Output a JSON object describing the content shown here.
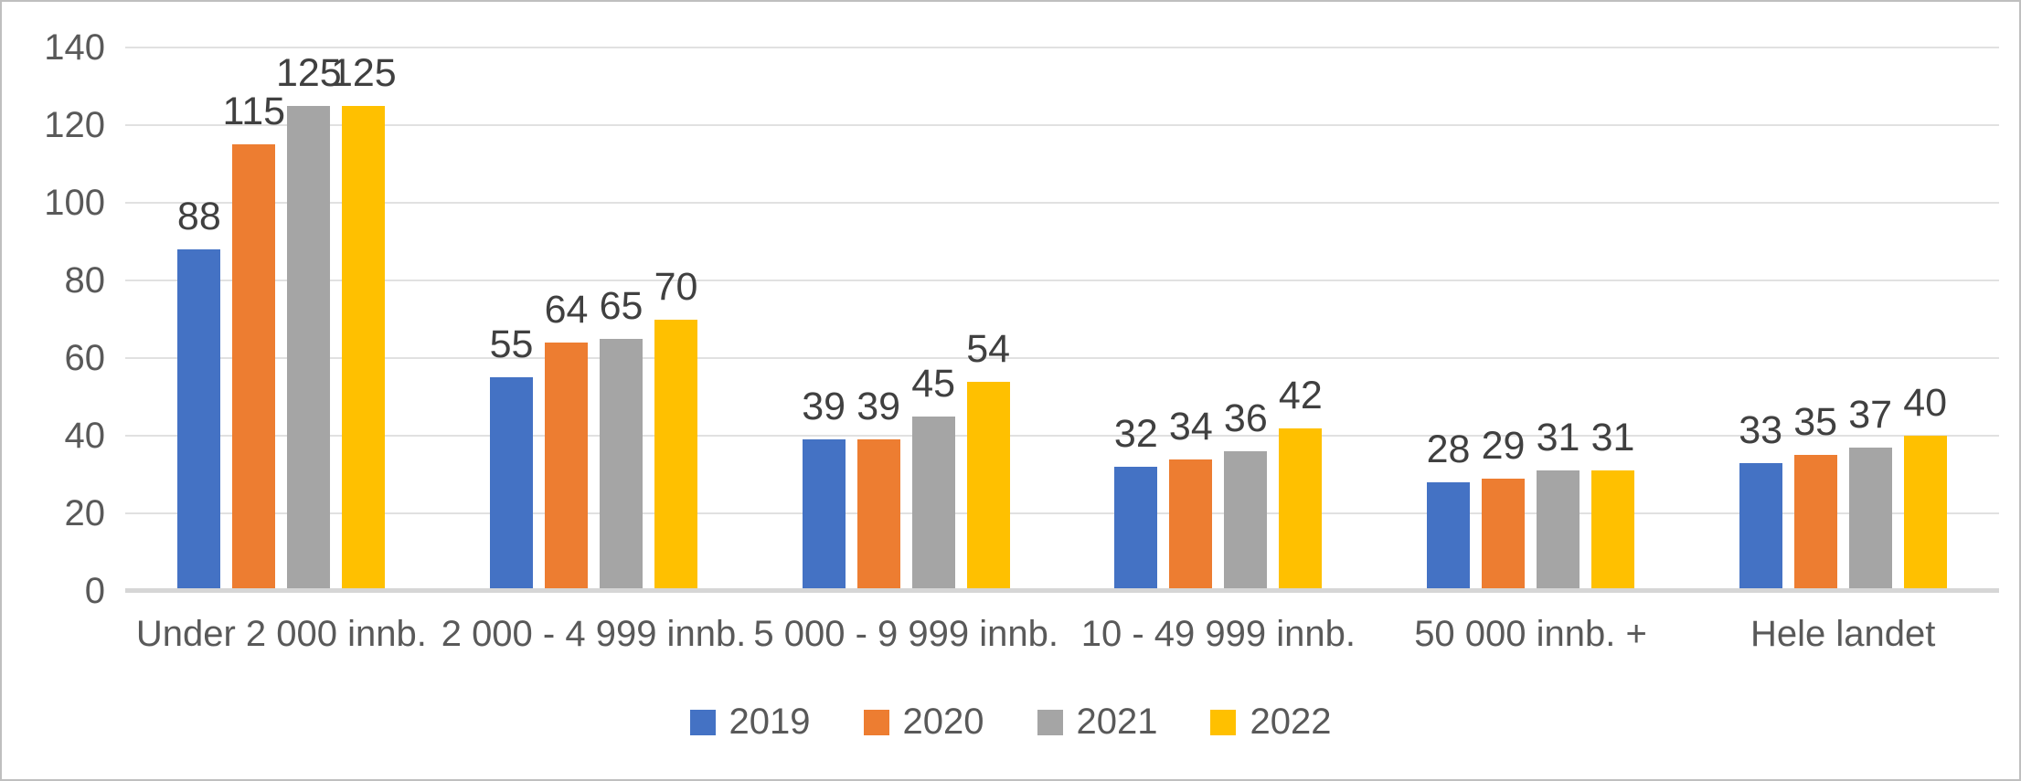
{
  "chart_data": {
    "type": "bar",
    "categories": [
      "Under 2 000 innb.",
      "2 000 - 4 999 innb.",
      "5 000 - 9 999 innb.",
      "10 - 49 999 innb.",
      "50 000 innb. +",
      "Hele landet"
    ],
    "series": [
      {
        "name": "2019",
        "color": "#4472C4",
        "values": [
          88,
          55,
          39,
          32,
          28,
          33
        ]
      },
      {
        "name": "2020",
        "color": "#ED7D31",
        "values": [
          115,
          64,
          39,
          34,
          29,
          35
        ]
      },
      {
        "name": "2021",
        "color": "#A5A5A5",
        "values": [
          125,
          65,
          45,
          36,
          31,
          37
        ]
      },
      {
        "name": "2022",
        "color": "#FFC000",
        "values": [
          125,
          70,
          54,
          42,
          31,
          40
        ]
      }
    ],
    "title": "",
    "xlabel": "",
    "ylabel": "",
    "ylim": [
      0,
      140
    ],
    "yticks": [
      0,
      20,
      40,
      60,
      80,
      100,
      120,
      140
    ],
    "grid": true,
    "data_labels": true,
    "legend_position": "bottom"
  },
  "styles": {
    "gridline_color": "#E1E1E1",
    "axis_line_color": "#D6D6D6",
    "axis_text_color": "#595959",
    "data_label_color": "#404040",
    "background": "#FFFFFF",
    "frame_border_color": "#BFBFBF"
  }
}
